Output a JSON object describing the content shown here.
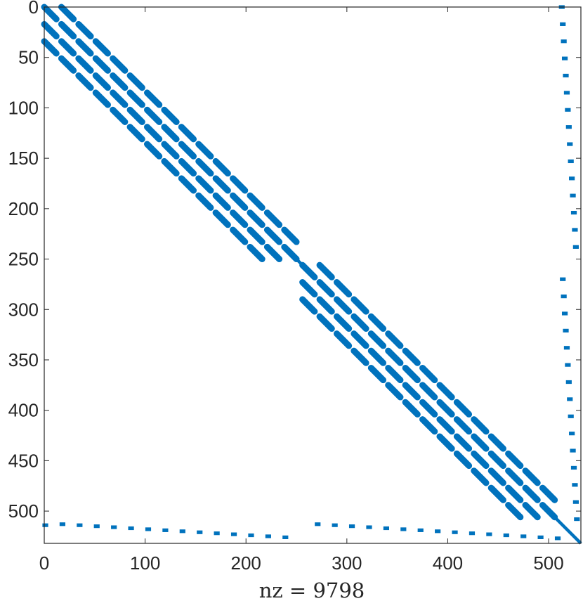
{
  "chart_data": {
    "type": "scatter",
    "plot_kind": "sparsity-pattern (spy)",
    "nrows": 532,
    "ncols": 532,
    "nz": 9798,
    "xlabel": "nz = 9798",
    "xlim": [
      0,
      532
    ],
    "ylim": [
      0,
      532
    ],
    "y_axis_reversed": true,
    "grid": false,
    "box": true,
    "marker_color": "#0072bd",
    "x_ticks": [
      0,
      100,
      200,
      300,
      400,
      500
    ],
    "x_tick_labels": [
      "0",
      "100",
      "200",
      "300",
      "400",
      "500"
    ],
    "y_ticks": [
      0,
      50,
      100,
      150,
      200,
      250,
      300,
      350,
      400,
      450,
      500
    ],
    "y_tick_labels": [
      "0",
      "50",
      "100",
      "150",
      "200",
      "250",
      "300",
      "350",
      "400",
      "450",
      "500"
    ],
    "blocks": [
      {
        "name": "block-1",
        "index_range": [
          0,
          255
        ],
        "band_offsets": [
          -34,
          -17,
          0,
          17
        ],
        "segment_length": 17,
        "segment_fill": 12
      },
      {
        "name": "block-2",
        "index_range": [
          256,
          511
        ],
        "band_offsets": [
          -34,
          -17,
          0,
          17
        ],
        "segment_length": 17,
        "segment_fill": 12
      }
    ],
    "main_diagonal_solid": [
      [
        238,
        270
      ],
      [
        495,
        532
      ]
    ],
    "coupling_points": [
      {
        "row": 514,
        "col": 0
      },
      {
        "row": 513,
        "col": 17
      },
      {
        "row": 514,
        "col": 34
      },
      {
        "row": 515,
        "col": 51
      },
      {
        "row": 516,
        "col": 68
      },
      {
        "row": 517,
        "col": 85
      },
      {
        "row": 518,
        "col": 102
      },
      {
        "row": 519,
        "col": 119
      },
      {
        "row": 520,
        "col": 136
      },
      {
        "row": 521,
        "col": 153
      },
      {
        "row": 522,
        "col": 170
      },
      {
        "row": 523,
        "col": 187
      },
      {
        "row": 524,
        "col": 204
      },
      {
        "row": 525,
        "col": 221
      },
      {
        "row": 526,
        "col": 238
      },
      {
        "row": 513,
        "col": 270
      },
      {
        "row": 514,
        "col": 287
      },
      {
        "row": 515,
        "col": 304
      },
      {
        "row": 516,
        "col": 321
      },
      {
        "row": 517,
        "col": 338
      },
      {
        "row": 518,
        "col": 355
      },
      {
        "row": 519,
        "col": 372
      },
      {
        "row": 520,
        "col": 389
      },
      {
        "row": 521,
        "col": 406
      },
      {
        "row": 522,
        "col": 423
      },
      {
        "row": 523,
        "col": 440
      },
      {
        "row": 524,
        "col": 457
      },
      {
        "row": 525,
        "col": 474
      },
      {
        "row": 526,
        "col": 491
      },
      {
        "row": 527,
        "col": 508
      },
      {
        "row": 0,
        "col": 512
      },
      {
        "row": 17,
        "col": 513
      },
      {
        "row": 34,
        "col": 514
      },
      {
        "row": 51,
        "col": 515
      },
      {
        "row": 68,
        "col": 516
      },
      {
        "row": 85,
        "col": 517
      },
      {
        "row": 102,
        "col": 518
      },
      {
        "row": 119,
        "col": 519
      },
      {
        "row": 136,
        "col": 520
      },
      {
        "row": 153,
        "col": 521
      },
      {
        "row": 170,
        "col": 522
      },
      {
        "row": 187,
        "col": 523
      },
      {
        "row": 204,
        "col": 524
      },
      {
        "row": 221,
        "col": 525
      },
      {
        "row": 238,
        "col": 526
      },
      {
        "row": 270,
        "col": 513
      },
      {
        "row": 287,
        "col": 514
      },
      {
        "row": 304,
        "col": 515
      },
      {
        "row": 321,
        "col": 516
      },
      {
        "row": 338,
        "col": 517
      },
      {
        "row": 355,
        "col": 518
      },
      {
        "row": 372,
        "col": 519
      },
      {
        "row": 389,
        "col": 520
      },
      {
        "row": 406,
        "col": 521
      },
      {
        "row": 423,
        "col": 522
      },
      {
        "row": 440,
        "col": 523
      },
      {
        "row": 457,
        "col": 524
      },
      {
        "row": 474,
        "col": 525
      },
      {
        "row": 491,
        "col": 526
      },
      {
        "row": 508,
        "col": 527
      }
    ]
  }
}
